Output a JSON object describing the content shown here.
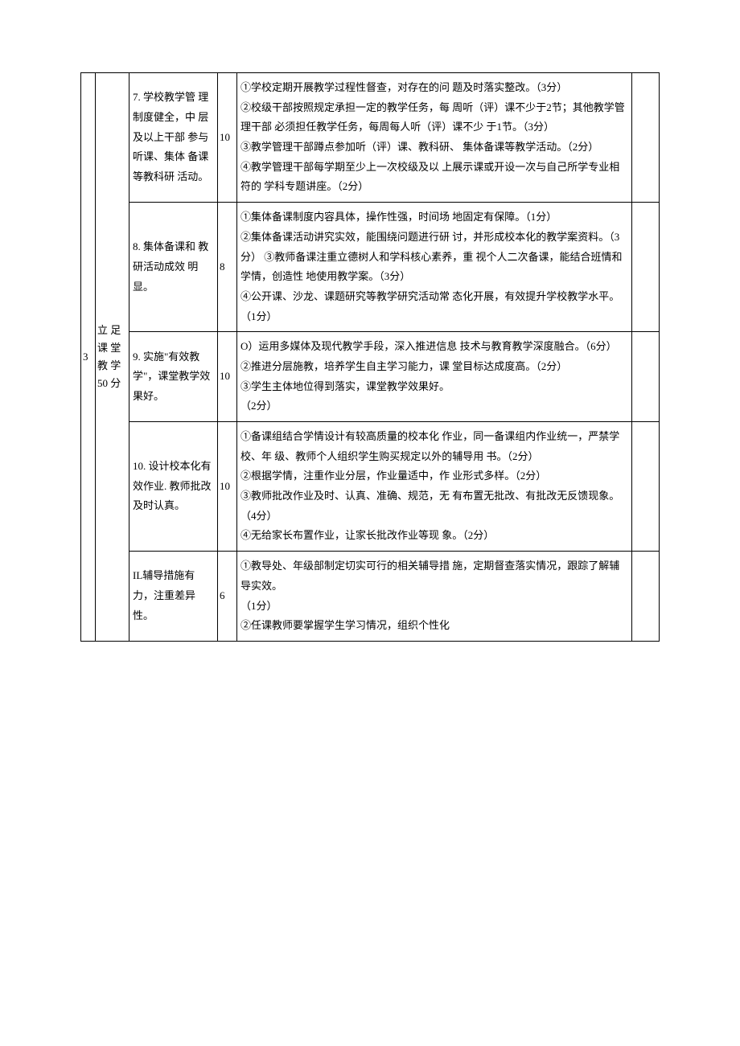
{
  "table": {
    "index": "3",
    "category": "立 足 课 堂 教 学 50 分",
    "rows": [
      {
        "item": "7. 学校教学管 理制度健全，中 层及以上干部 参与听课、集体 备课等教科研 活动。",
        "points": "10",
        "desc": "①学校定期开展教学过程性督查，对存在的问 题及时落实整改。（3分）\n②校级干部按照规定承担一定的教学任务，每 周听（评）课不少于2节；其他教学管理干部 必须担任教学任务，每周每人听（评）课不少 于1节。（3分）\n③教学管理干部蹲点参加听（评）课、教科研、 集体备课等教学活动。（2分）\n④教学管理干部每学期至少上一次校级及以 上展示课或开设一次与自己所学专业相符的  学科专题讲座。（2分）"
      },
      {
        "item": "8. 集体备课和 教研活动成效 明显。",
        "points": "8",
        "desc": "①集体备课制度内容具体，操作性强，时间场 地固定有保障。（1分）\n②集体备课活动讲究实效，能围绕问题进行研 讨，并形成校本化的教学案资料。（3分） ③教师备课注重立德树人和学科核心素养，重 视个人二次备课，能结合班情和学情，创造性 地使用教学案。（3分）\n④公开课、沙龙、课题研究等教学研究活动常 态化开展，有效提升学校教学水平。（1分）"
      },
      {
        "item": "9. 实施\"有效教学\"，课堂教学效果好。",
        "points": "10",
        "desc": "O）运用多媒体及现代教学手段，深入推进信息 技术与教育教学深度融合。（6分）\n②推进分层施教，培养学生自主学习能力，课 堂目标达成度高。（2分）\n③学生主体地位得到落实，课堂教学效果好。\n（2分）"
      },
      {
        "item": "10. 设计校本化有效作业. 教师批改及时认真。",
        "points": "10",
        "desc": "①备课组结合学情设计有较高质量的校本化 作业，同一备课组内作业统一，严禁学校、年 级、教师个人组织学生购买规定以外的辅导用 书。（2分）\n②根据学情，注重作业分层，作业量适中，作 业形式多样。（2分）\n③教师批改作业及时、认真、准确、规范，无 有布置无批改、有批改无反馈现象。（4分）\n④无给家长布置作业，让家长批改作业等现 象。（2分）"
      },
      {
        "item": "IL辅导措施有 力，注重差异 性。",
        "points": "6",
        "desc": "①教导处、年级部制定切实可行的相关辅导措 施，定期督查落实情况，跟踪了解辅导实效。\n（1分）\n②任课教师要掌握学生学习情况，组织个性化"
      }
    ]
  }
}
